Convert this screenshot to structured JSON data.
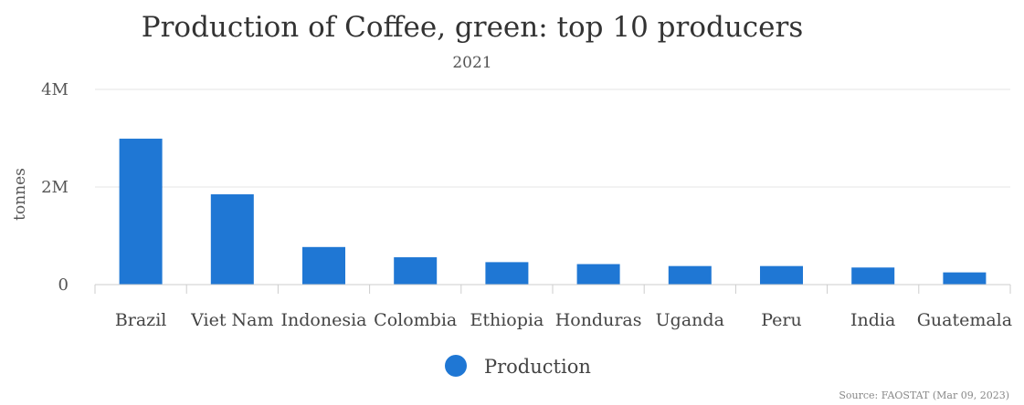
{
  "chart_data": {
    "type": "bar",
    "title": "Production of Coffee, green: top 10 producers",
    "subtitle": "2021",
    "xlabel": "",
    "ylabel": "tonnes",
    "categories": [
      "Brazil",
      "Viet Nam",
      "Indonesia",
      "Colombia",
      "Ethiopia",
      "Honduras",
      "Uganda",
      "Peru",
      "India",
      "Guatemala"
    ],
    "series": [
      {
        "name": "Production",
        "color": "#1f77d4",
        "values": [
          2990000,
          1850000,
          770000,
          560000,
          460000,
          420000,
          380000,
          380000,
          350000,
          250000
        ]
      }
    ],
    "ylim": [
      0,
      4000000
    ],
    "yticks": [
      0,
      2000000,
      4000000
    ],
    "ytick_labels": [
      "0",
      "2M",
      "4M"
    ],
    "grid": true,
    "legend_position": "bottom-center",
    "source": "Source: FAOSTAT (Mar 09, 2023)"
  }
}
